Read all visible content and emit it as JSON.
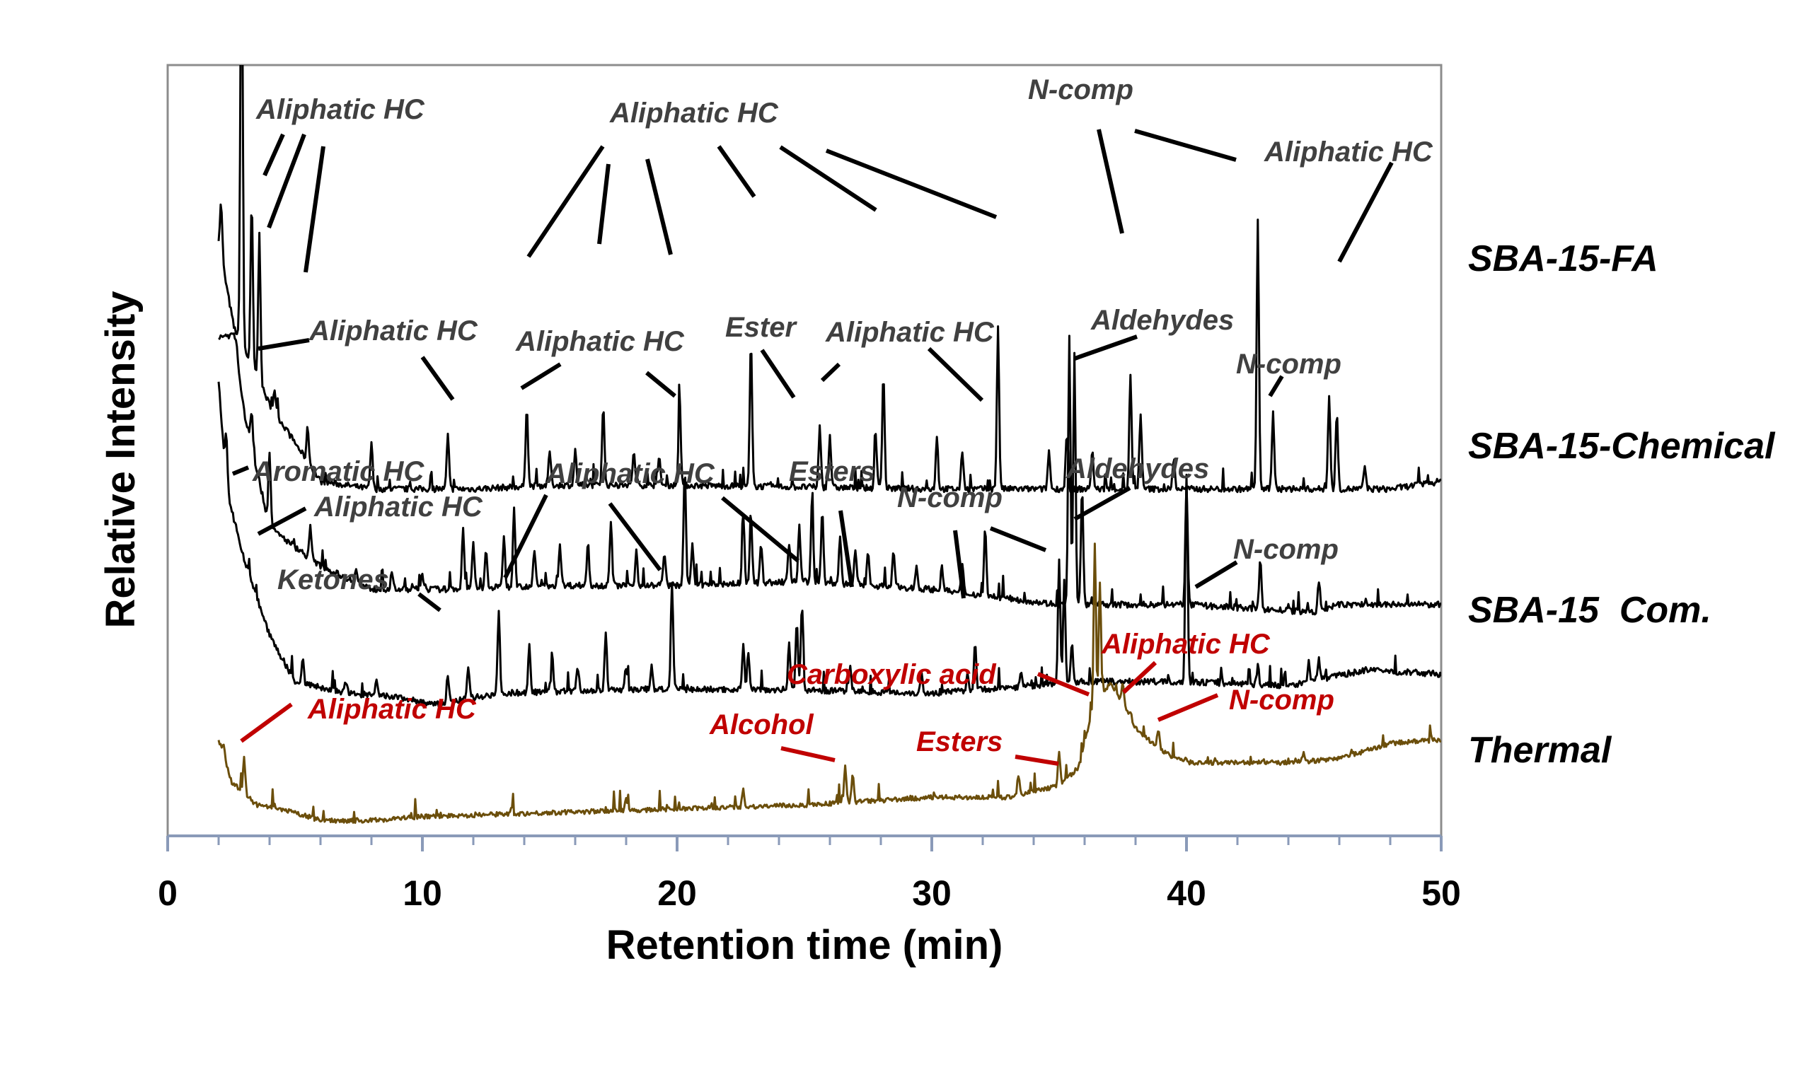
{
  "chart_data": {
    "type": "line",
    "title": "",
    "xlabel": "Retention time (min)",
    "ylabel": "Relative Intensity",
    "xlim": [
      0,
      50
    ],
    "xticks": [
      0,
      10,
      20,
      30,
      40,
      50
    ],
    "yticks_shown": false,
    "grid": false,
    "colors": {
      "black": "#000000",
      "thermal": "#6b4e0b",
      "red": "#c00000",
      "grey": "#404040",
      "axis": "#8a9ab8"
    },
    "series": [
      {
        "name": "SBA-15-FA",
        "color": "#000000",
        "baseline": [
          [
            2.0,
            0.77
          ],
          [
            2.6,
            0.66
          ],
          [
            4,
            0.56
          ],
          [
            6,
            0.46
          ],
          [
            8,
            0.45
          ],
          [
            12,
            0.45
          ],
          [
            15,
            0.455
          ],
          [
            20,
            0.455
          ],
          [
            30,
            0.45
          ],
          [
            40,
            0.45
          ],
          [
            48,
            0.45
          ],
          [
            50,
            0.46
          ]
        ],
        "peaks": [
          [
            2.1,
            0.82
          ],
          [
            2.9,
            1.22
          ],
          [
            3.3,
            0.82
          ],
          [
            3.6,
            0.78
          ],
          [
            4.2,
            0.58
          ],
          [
            5.5,
            0.53
          ],
          [
            8.0,
            0.51
          ],
          [
            11.0,
            0.52
          ],
          [
            14.1,
            0.56
          ],
          [
            15.0,
            0.5
          ],
          [
            16.0,
            0.5
          ],
          [
            17.1,
            0.56
          ],
          [
            18.3,
            0.5
          ],
          [
            19.3,
            0.49
          ],
          [
            20.1,
            0.57
          ],
          [
            22.9,
            0.64
          ],
          [
            25.6,
            0.53
          ],
          [
            26.0,
            0.52
          ],
          [
            27.8,
            0.52
          ],
          [
            28.1,
            0.6
          ],
          [
            30.2,
            0.52
          ],
          [
            31.2,
            0.5
          ],
          [
            32.6,
            0.66
          ],
          [
            34.6,
            0.5
          ],
          [
            35.3,
            0.52
          ],
          [
            36.3,
            0.5
          ],
          [
            37.8,
            0.6
          ],
          [
            38.2,
            0.55
          ],
          [
            39.5,
            0.49
          ],
          [
            42.8,
            0.8
          ],
          [
            43.4,
            0.55
          ],
          [
            45.6,
            0.57
          ],
          [
            45.9,
            0.55
          ],
          [
            47.0,
            0.48
          ]
        ]
      },
      {
        "name": "SBA-15-Chemical",
        "color": "#000000",
        "baseline": [
          [
            2.0,
            0.648
          ],
          [
            2.6,
            0.65
          ],
          [
            3,
            0.55
          ],
          [
            4,
            0.4
          ],
          [
            6,
            0.35
          ],
          [
            8,
            0.32
          ],
          [
            11,
            0.32
          ],
          [
            15,
            0.325
          ],
          [
            20,
            0.325
          ],
          [
            25,
            0.33
          ],
          [
            30,
            0.32
          ],
          [
            35,
            0.3
          ],
          [
            40,
            0.3
          ],
          [
            45,
            0.29
          ],
          [
            46,
            0.3
          ],
          [
            50,
            0.3
          ]
        ],
        "peaks": [
          [
            2.7,
            0.64
          ],
          [
            3.3,
            0.55
          ],
          [
            4.0,
            0.5
          ],
          [
            5.6,
            0.4
          ],
          [
            7.4,
            0.35
          ],
          [
            8.8,
            0.34
          ],
          [
            10.0,
            0.34
          ],
          [
            11.6,
            0.4
          ],
          [
            12.0,
            0.38
          ],
          [
            12.5,
            0.37
          ],
          [
            13.2,
            0.39
          ],
          [
            13.6,
            0.43
          ],
          [
            14.4,
            0.37
          ],
          [
            15.4,
            0.38
          ],
          [
            16.5,
            0.38
          ],
          [
            17.4,
            0.41
          ],
          [
            18.4,
            0.37
          ],
          [
            19.5,
            0.37
          ],
          [
            20.3,
            0.48
          ],
          [
            20.6,
            0.38
          ],
          [
            22.6,
            0.42
          ],
          [
            22.9,
            0.42
          ],
          [
            23.3,
            0.38
          ],
          [
            24.4,
            0.38
          ],
          [
            24.8,
            0.4
          ],
          [
            25.3,
            0.44
          ],
          [
            25.7,
            0.42
          ],
          [
            26.4,
            0.39
          ],
          [
            27.0,
            0.37
          ],
          [
            27.5,
            0.37
          ],
          [
            28.5,
            0.37
          ],
          [
            29.4,
            0.35
          ],
          [
            30.4,
            0.35
          ],
          [
            31.2,
            0.35
          ],
          [
            32.1,
            0.4
          ],
          [
            35.4,
            0.65
          ],
          [
            35.6,
            0.63
          ],
          [
            35.9,
            0.45
          ],
          [
            40.0,
            0.46
          ],
          [
            42.9,
            0.36
          ],
          [
            45.2,
            0.33
          ]
        ]
      },
      {
        "name": "SBA-15  Com.",
        "color": "#000000",
        "baseline": [
          [
            2.0,
            0.59
          ],
          [
            2.3,
            0.45
          ],
          [
            3,
            0.36
          ],
          [
            4,
            0.26
          ],
          [
            5,
            0.2
          ],
          [
            7,
            0.185
          ],
          [
            9,
            0.18
          ],
          [
            10.5,
            0.17
          ],
          [
            13,
            0.185
          ],
          [
            18,
            0.19
          ],
          [
            24,
            0.19
          ],
          [
            30,
            0.185
          ],
          [
            36,
            0.2
          ],
          [
            40,
            0.2
          ],
          [
            44,
            0.195
          ],
          [
            47,
            0.215
          ],
          [
            50,
            0.21
          ]
        ],
        "peaks": [
          [
            2.3,
            0.52
          ],
          [
            2.6,
            0.38
          ],
          [
            3.0,
            0.32
          ],
          [
            4.6,
            0.22
          ],
          [
            5.3,
            0.23
          ],
          [
            7.0,
            0.2
          ],
          [
            8.2,
            0.2
          ],
          [
            11.0,
            0.21
          ],
          [
            11.8,
            0.22
          ],
          [
            13.0,
            0.29
          ],
          [
            14.2,
            0.25
          ],
          [
            15.1,
            0.23
          ],
          [
            16.1,
            0.22
          ],
          [
            17.2,
            0.26
          ],
          [
            18.0,
            0.22
          ],
          [
            19.0,
            0.22
          ],
          [
            19.8,
            0.33
          ],
          [
            22.6,
            0.25
          ],
          [
            22.8,
            0.24
          ],
          [
            24.4,
            0.25
          ],
          [
            24.7,
            0.28
          ],
          [
            24.9,
            0.3
          ],
          [
            26.8,
            0.22
          ],
          [
            29.6,
            0.21
          ],
          [
            31.4,
            0.21
          ],
          [
            31.7,
            0.25
          ],
          [
            33.5,
            0.21
          ],
          [
            35.0,
            0.36
          ],
          [
            35.2,
            0.33
          ],
          [
            35.5,
            0.25
          ],
          [
            40.0,
            0.47
          ],
          [
            42.8,
            0.22
          ],
          [
            44.8,
            0.225
          ],
          [
            45.2,
            0.23
          ]
        ]
      },
      {
        "name": "Thermal",
        "color": "#6b4e0b",
        "baseline": [
          [
            2.0,
            0.125
          ],
          [
            2.5,
            0.07
          ],
          [
            3,
            0.055
          ],
          [
            3.5,
            0.04
          ],
          [
            5,
            0.03
          ],
          [
            6,
            0.02
          ],
          [
            8,
            0.02
          ],
          [
            10,
            0.025
          ],
          [
            15,
            0.03
          ],
          [
            20,
            0.035
          ],
          [
            25,
            0.04
          ],
          [
            30,
            0.05
          ],
          [
            33,
            0.05
          ],
          [
            35,
            0.065
          ],
          [
            35.8,
            0.09
          ],
          [
            36.2,
            0.15
          ],
          [
            37,
            0.2
          ],
          [
            38,
            0.14
          ],
          [
            39,
            0.11
          ],
          [
            40,
            0.095
          ],
          [
            42,
            0.095
          ],
          [
            44,
            0.095
          ],
          [
            46,
            0.1
          ],
          [
            48,
            0.12
          ],
          [
            50,
            0.125
          ]
        ],
        "peaks": [
          [
            2.2,
            0.12
          ],
          [
            3.0,
            0.1
          ],
          [
            13.5,
            0.04
          ],
          [
            18.0,
            0.05
          ],
          [
            22.6,
            0.06
          ],
          [
            26.6,
            0.09
          ],
          [
            26.9,
            0.08
          ],
          [
            33.4,
            0.08
          ],
          [
            35.0,
            0.11
          ],
          [
            36.4,
            0.38
          ],
          [
            36.6,
            0.33
          ],
          [
            37.5,
            0.2
          ],
          [
            37.8,
            0.16
          ],
          [
            38.9,
            0.14
          ],
          [
            40.0,
            0.1
          ],
          [
            43.0,
            0.1
          ],
          [
            44.6,
            0.11
          ],
          [
            46.5,
            0.11
          ]
        ]
      }
    ],
    "annotations": [
      {
        "series": "SBA-15-FA",
        "items": [
          "Aliphatic HC",
          "Aliphatic HC",
          "N-comp",
          "Aliphatic HC"
        ]
      },
      {
        "series": "SBA-15-Chemical",
        "items": [
          "Aliphatic HC",
          "Aliphatic HC",
          "Ester",
          "Aliphatic HC",
          "Aldehydes",
          "N-comp"
        ]
      },
      {
        "series": "SBA-15  Com.",
        "items": [
          "Aromatic HC",
          "Aliphatic HC",
          "Ketones",
          "Aliphatic HC",
          "Esters",
          "N-comp",
          "Aldehydes",
          "N-comp"
        ]
      },
      {
        "series": "Thermal",
        "items": [
          "Aliphatic HC",
          "Alcohol",
          "Esters",
          "Carboxylic acid",
          "Aliphatic HC",
          "N-comp"
        ]
      }
    ]
  }
}
